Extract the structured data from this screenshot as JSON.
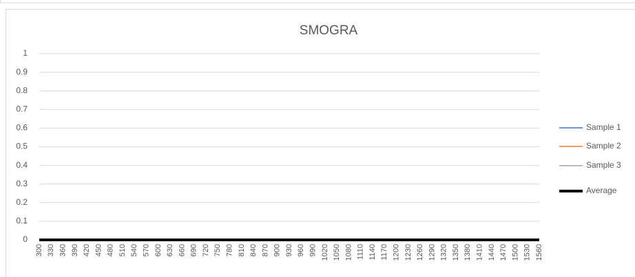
{
  "chart_data": {
    "type": "line",
    "title": "SMOGRA",
    "x": [
      300,
      330,
      360,
      390,
      420,
      450,
      480,
      510,
      540,
      570,
      600,
      630,
      660,
      690,
      720,
      750,
      780,
      810,
      840,
      870,
      900,
      930,
      960,
      990,
      1020,
      1050,
      1080,
      1110,
      1140,
      1170,
      1200,
      1230,
      1260,
      1290,
      1320,
      1350,
      1380,
      1410,
      1440,
      1470,
      1500,
      1530,
      1560
    ],
    "xlim": [
      300,
      1560
    ],
    "xticks": [
      300,
      330,
      360,
      390,
      420,
      450,
      480,
      510,
      540,
      570,
      600,
      630,
      660,
      690,
      720,
      750,
      780,
      810,
      840,
      870,
      900,
      930,
      960,
      990,
      1020,
      1050,
      1080,
      1110,
      1140,
      1170,
      1200,
      1230,
      1260,
      1290,
      1320,
      1350,
      1380,
      1410,
      1440,
      1470,
      1500,
      1530,
      1560
    ],
    "ylim": [
      0,
      1
    ],
    "yticks": [
      0,
      0.1,
      0.2,
      0.3,
      0.4,
      0.5,
      0.6,
      0.7,
      0.8,
      0.9,
      1
    ],
    "grid": true,
    "legend": "right",
    "series": [
      {
        "name": "Sample 1",
        "color": "#4472c4",
        "values": [
          0,
          0,
          0,
          0,
          0,
          0,
          0,
          0,
          0,
          0,
          0,
          0,
          0,
          0,
          0,
          0,
          0,
          0,
          0,
          0,
          0,
          0,
          0,
          0,
          0,
          0,
          0,
          0,
          0,
          0,
          0,
          0,
          0,
          0,
          0,
          0,
          0,
          0,
          0,
          0,
          0,
          0,
          0
        ]
      },
      {
        "name": "Sample 2",
        "color": "#ed7d31",
        "values": [
          0,
          0,
          0,
          0,
          0,
          0,
          0,
          0,
          0,
          0,
          0,
          0,
          0,
          0,
          0,
          0,
          0,
          0,
          0,
          0,
          0,
          0,
          0,
          0,
          0,
          0,
          0,
          0,
          0,
          0,
          0,
          0,
          0,
          0,
          0,
          0,
          0,
          0,
          0,
          0,
          0,
          0,
          0
        ]
      },
      {
        "name": "Sample 3",
        "color": "#a5a5a5",
        "values": [
          0,
          0,
          0,
          0,
          0,
          0,
          0,
          0,
          0,
          0,
          0,
          0,
          0,
          0,
          0,
          0,
          0,
          0,
          0,
          0,
          0,
          0,
          0,
          0,
          0,
          0,
          0,
          0,
          0,
          0,
          0,
          0,
          0,
          0,
          0,
          0,
          0,
          0,
          0,
          0,
          0,
          0,
          0
        ]
      },
      {
        "name": "Average",
        "color": "#000000",
        "values": [
          0,
          0,
          0,
          0,
          0,
          0,
          0,
          0,
          0,
          0,
          0,
          0,
          0,
          0,
          0,
          0,
          0,
          0,
          0,
          0,
          0,
          0,
          0,
          0,
          0,
          0,
          0,
          0,
          0,
          0,
          0,
          0,
          0,
          0,
          0,
          0,
          0,
          0,
          0,
          0,
          0,
          0,
          0
        ]
      }
    ]
  }
}
